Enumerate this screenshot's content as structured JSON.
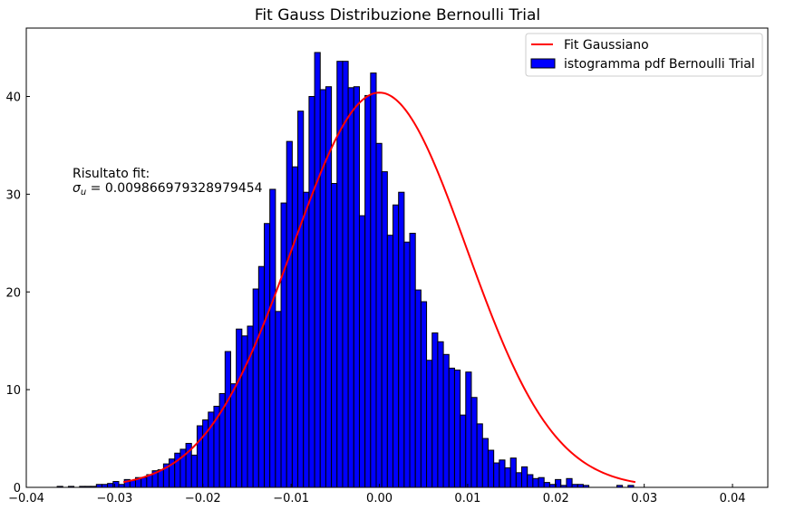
{
  "chart_data": {
    "type": "bar",
    "title": "Fit Gauss Distribuzione Bernoulli Trial",
    "xlim": [
      -0.04,
      0.044
    ],
    "ylim": [
      0,
      47
    ],
    "x_ticks": [
      -0.04,
      -0.03,
      -0.02,
      -0.01,
      0.0,
      0.01,
      0.02,
      0.03,
      0.04
    ],
    "x_tick_labels": [
      "−0.04",
      "−0.03",
      "−0.02",
      "−0.01",
      "0.00",
      "0.01",
      "0.02",
      "0.03",
      "0.04"
    ],
    "y_ticks": [
      0,
      10,
      20,
      30,
      40
    ],
    "y_tick_labels": [
      "0",
      "10",
      "20",
      "30",
      "40"
    ],
    "bar_color": "#0000ff",
    "bar_edge_color": "#000000",
    "fit_color": "#ff0000",
    "legend_position": "top-right",
    "legend": [
      {
        "label": "Fit Gaussiano",
        "kind": "line",
        "color": "#ff0000"
      },
      {
        "label": "istogramma pdf Bernoulli Trial",
        "kind": "patch",
        "color": "#0000ff"
      }
    ],
    "annotation": {
      "line1": "Risultato fit:",
      "sigma_symbol": "σ",
      "sigma_sub": "u",
      "sigma_value": " = 0.009866979328979454"
    },
    "histogram": {
      "x_start": -0.0365,
      "bin_width": 0.000634,
      "values": [
        0.1,
        0,
        0.1,
        0,
        0.1,
        0.1,
        0.1,
        0.3,
        0.3,
        0.4,
        0.6,
        0.3,
        0.8,
        0.7,
        1.0,
        1.0,
        1.3,
        1.7,
        1.8,
        2.4,
        2.9,
        3.5,
        3.9,
        4.5,
        3.3,
        6.3,
        6.9,
        7.7,
        8.3,
        9.6,
        13.9,
        10.6,
        16.2,
        15.5,
        16.5,
        20.3,
        22.6,
        27.0,
        30.5,
        18.0,
        29.1,
        35.4,
        32.8,
        38.5,
        30.2,
        40.0,
        44.5,
        40.7,
        41.0,
        31.1,
        43.6,
        43.6,
        40.9,
        41.0,
        27.8,
        40.1,
        42.4,
        35.2,
        32.3,
        25.8,
        28.9,
        30.2,
        25.1,
        26.0,
        20.2,
        19.0,
        13.0,
        15.8,
        14.9,
        13.6,
        12.2,
        12.0,
        7.4,
        11.8,
        9.2,
        6.5,
        5.0,
        3.8,
        2.5,
        2.8,
        2.0,
        3.0,
        1.5,
        2.1,
        1.3,
        0.9,
        1.0,
        0.5,
        0.3,
        0.8,
        0.2,
        0.9,
        0.3,
        0.3,
        0.2,
        0,
        0,
        0,
        0,
        0,
        0.2,
        0,
        0.2
      ]
    },
    "fit": {
      "mu": 0.0,
      "sigma": 0.009866979328979454,
      "amplitude": 40.4
    }
  }
}
